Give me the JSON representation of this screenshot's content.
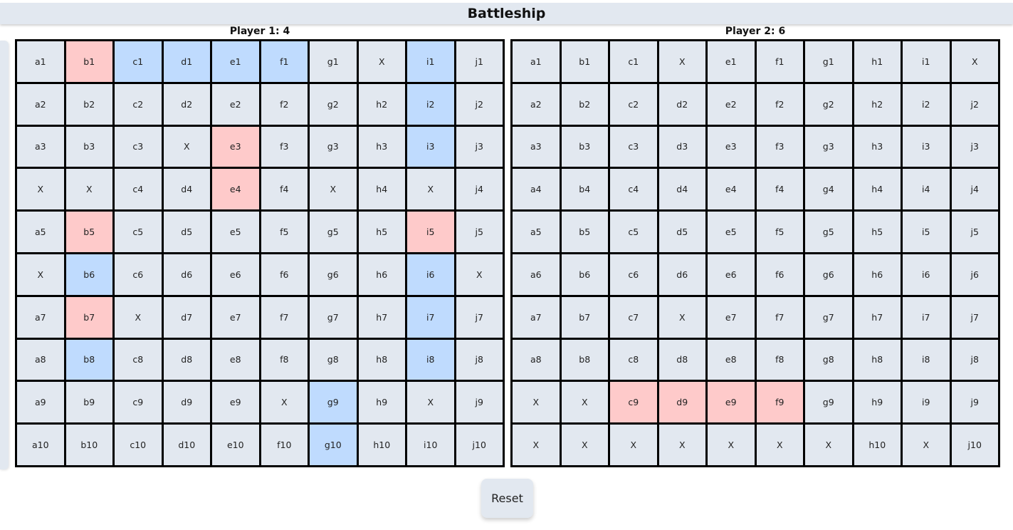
{
  "app": {
    "title": "Battleship"
  },
  "boards": [
    {
      "label": "Player 1: 4",
      "rows": [
        [
          "a1",
          "b1",
          "c1",
          "d1",
          "e1",
          "f1",
          "g1",
          "X",
          "i1",
          "j1"
        ],
        [
          "a2",
          "b2",
          "c2",
          "d2",
          "e2",
          "f2",
          "g2",
          "h2",
          "i2",
          "j2"
        ],
        [
          "a3",
          "b3",
          "c3",
          "X",
          "e3",
          "f3",
          "g3",
          "h3",
          "i3",
          "j3"
        ],
        [
          "X",
          "X",
          "c4",
          "d4",
          "e4",
          "f4",
          "X",
          "h4",
          "X",
          "j4"
        ],
        [
          "a5",
          "b5",
          "c5",
          "d5",
          "e5",
          "f5",
          "g5",
          "h5",
          "i5",
          "j5"
        ],
        [
          "X",
          "b6",
          "c6",
          "d6",
          "e6",
          "f6",
          "g6",
          "h6",
          "i6",
          "X"
        ],
        [
          "a7",
          "b7",
          "X",
          "d7",
          "e7",
          "f7",
          "g7",
          "h7",
          "i7",
          "j7"
        ],
        [
          "a8",
          "b8",
          "c8",
          "d8",
          "e8",
          "f8",
          "g8",
          "h8",
          "i8",
          "j8"
        ],
        [
          "a9",
          "b9",
          "c9",
          "d9",
          "e9",
          "X",
          "g9",
          "h9",
          "X",
          "j9"
        ],
        [
          "a10",
          "b10",
          "c10",
          "d10",
          "e10",
          "f10",
          "g10",
          "h10",
          "i10",
          "j10"
        ]
      ],
      "states": [
        [
          "",
          "hit",
          "ship",
          "ship",
          "ship",
          "ship",
          "",
          "",
          "ship",
          ""
        ],
        [
          "",
          "",
          "",
          "",
          "",
          "",
          "",
          "",
          "ship",
          ""
        ],
        [
          "",
          "",
          "",
          "",
          "hit",
          "",
          "",
          "",
          "ship",
          ""
        ],
        [
          "",
          "",
          "",
          "",
          "hit",
          "",
          "",
          "",
          "",
          ""
        ],
        [
          "",
          "hit",
          "",
          "",
          "",
          "",
          "",
          "",
          "hit",
          ""
        ],
        [
          "",
          "ship",
          "",
          "",
          "",
          "",
          "",
          "",
          "ship",
          ""
        ],
        [
          "",
          "hit",
          "",
          "",
          "",
          "",
          "",
          "",
          "ship",
          ""
        ],
        [
          "",
          "ship",
          "",
          "",
          "",
          "",
          "",
          "",
          "ship",
          ""
        ],
        [
          "",
          "",
          "",
          "",
          "",
          "",
          "ship",
          "",
          "",
          ""
        ],
        [
          "",
          "",
          "",
          "",
          "",
          "",
          "ship",
          "",
          "",
          ""
        ]
      ]
    },
    {
      "label": "Player 2: 6",
      "rows": [
        [
          "a1",
          "b1",
          "c1",
          "X",
          "e1",
          "f1",
          "g1",
          "h1",
          "i1",
          "X"
        ],
        [
          "a2",
          "b2",
          "c2",
          "d2",
          "e2",
          "f2",
          "g2",
          "h2",
          "i2",
          "j2"
        ],
        [
          "a3",
          "b3",
          "c3",
          "d3",
          "e3",
          "f3",
          "g3",
          "h3",
          "i3",
          "j3"
        ],
        [
          "a4",
          "b4",
          "c4",
          "d4",
          "e4",
          "f4",
          "g4",
          "h4",
          "i4",
          "j4"
        ],
        [
          "a5",
          "b5",
          "c5",
          "d5",
          "e5",
          "f5",
          "g5",
          "h5",
          "i5",
          "j5"
        ],
        [
          "a6",
          "b6",
          "c6",
          "d6",
          "e6",
          "f6",
          "g6",
          "h6",
          "i6",
          "j6"
        ],
        [
          "a7",
          "b7",
          "c7",
          "X",
          "e7",
          "f7",
          "g7",
          "h7",
          "i7",
          "j7"
        ],
        [
          "a8",
          "b8",
          "c8",
          "d8",
          "e8",
          "f8",
          "g8",
          "h8",
          "i8",
          "j8"
        ],
        [
          "X",
          "X",
          "c9",
          "d9",
          "e9",
          "f9",
          "g9",
          "h9",
          "i9",
          "j9"
        ],
        [
          "X",
          "X",
          "X",
          "X",
          "X",
          "X",
          "X",
          "h10",
          "X",
          "j10"
        ]
      ],
      "states": [
        [
          "",
          "",
          "",
          "",
          "",
          "",
          "",
          "",
          "",
          ""
        ],
        [
          "",
          "",
          "",
          "",
          "",
          "",
          "",
          "",
          "",
          ""
        ],
        [
          "",
          "",
          "",
          "",
          "",
          "",
          "",
          "",
          "",
          ""
        ],
        [
          "",
          "",
          "",
          "",
          "",
          "",
          "",
          "",
          "",
          ""
        ],
        [
          "",
          "",
          "",
          "",
          "",
          "",
          "",
          "",
          "",
          ""
        ],
        [
          "",
          "",
          "",
          "",
          "",
          "",
          "",
          "",
          "",
          ""
        ],
        [
          "",
          "",
          "",
          "",
          "",
          "",
          "",
          "",
          "",
          ""
        ],
        [
          "",
          "",
          "",
          "",
          "",
          "",
          "",
          "",
          "",
          ""
        ],
        [
          "",
          "",
          "hit",
          "hit",
          "hit",
          "hit",
          "",
          "",
          "",
          ""
        ],
        [
          "",
          "",
          "",
          "",
          "",
          "",
          "",
          "",
          "",
          ""
        ]
      ]
    }
  ],
  "colors": {
    "cell": "#e2e8f0",
    "hit": "#fecaca",
    "ship": "#bfdbfe",
    "grid": "#000000"
  },
  "controls": {
    "reset_label": "Reset"
  }
}
